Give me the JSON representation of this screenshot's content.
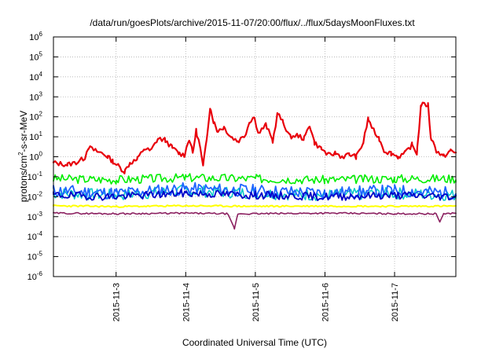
{
  "chart_data": {
    "type": "line",
    "title": "/data/run/goesPlots/archive/2015-11-07/20:00/flux/../flux/5daysMoonFluxes.txt",
    "xlabel": "Coordinated Universal Time (UTC)",
    "ylabel_base": "protons/cm",
    "ylabel_exp": "2",
    "ylabel_rest": "-s-sr-MeV",
    "yscale": "log",
    "ylim": [
      1e-06,
      1000000.0
    ],
    "xlim": [
      2.1,
      7.88
    ],
    "grid": true,
    "y_ticks": [
      {
        "value": -6,
        "base": "10",
        "exp": "-6"
      },
      {
        "value": -5,
        "base": "10",
        "exp": "-5"
      },
      {
        "value": -4,
        "base": "10",
        "exp": "-4"
      },
      {
        "value": -3,
        "base": "10",
        "exp": "-3"
      },
      {
        "value": -2,
        "base": "10",
        "exp": "-2"
      },
      {
        "value": -1,
        "base": "10",
        "exp": "-1"
      },
      {
        "value": 0,
        "base": "10",
        "exp": "0"
      },
      {
        "value": 1,
        "base": "10",
        "exp": "1"
      },
      {
        "value": 2,
        "base": "10",
        "exp": "2"
      },
      {
        "value": 3,
        "base": "10",
        "exp": "3"
      },
      {
        "value": 4,
        "base": "10",
        "exp": "4"
      },
      {
        "value": 5,
        "base": "10",
        "exp": "5"
      },
      {
        "value": 6,
        "base": "10",
        "exp": "6"
      }
    ],
    "x_ticks": [
      {
        "value": 3,
        "label": "2015-11-3"
      },
      {
        "value": 4,
        "label": "2015-11-4"
      },
      {
        "value": 5,
        "label": "2015-11-5"
      },
      {
        "value": 6,
        "label": "2015-11-6"
      },
      {
        "value": 7,
        "label": "2015-11-7"
      }
    ],
    "series": [
      {
        "color": "#e8000b",
        "width": 2.2,
        "jitter": 0.12,
        "points": [
          [
            2.1,
            0.5
          ],
          [
            2.3,
            0.4
          ],
          [
            2.45,
            0.55
          ],
          [
            2.55,
            0.9
          ],
          [
            2.6,
            3.0
          ],
          [
            2.7,
            2.0
          ],
          [
            2.8,
            1.5
          ],
          [
            2.88,
            1.0
          ],
          [
            2.95,
            0.6
          ],
          [
            3.05,
            0.3
          ],
          [
            3.12,
            0.18
          ],
          [
            3.2,
            0.5
          ],
          [
            3.3,
            0.7
          ],
          [
            3.4,
            2.5
          ],
          [
            3.5,
            2.0
          ],
          [
            3.6,
            8.0
          ],
          [
            3.7,
            7.0
          ],
          [
            3.8,
            3.0
          ],
          [
            3.9,
            1.5
          ],
          [
            3.98,
            1.2
          ],
          [
            4.05,
            8.0
          ],
          [
            4.1,
            1.5
          ],
          [
            4.15,
            20
          ],
          [
            4.2,
            4.0
          ],
          [
            4.25,
            0.3
          ],
          [
            4.3,
            8.0
          ],
          [
            4.35,
            300
          ],
          [
            4.4,
            60
          ],
          [
            4.45,
            20
          ],
          [
            4.55,
            30
          ],
          [
            4.65,
            10
          ],
          [
            4.75,
            6.0
          ],
          [
            4.85,
            12
          ],
          [
            4.92,
            60
          ],
          [
            4.98,
            100
          ],
          [
            5.05,
            15
          ],
          [
            5.15,
            40
          ],
          [
            5.25,
            6.0
          ],
          [
            5.32,
            150
          ],
          [
            5.4,
            50
          ],
          [
            5.5,
            10
          ],
          [
            5.6,
            12
          ],
          [
            5.7,
            8.0
          ],
          [
            5.78,
            40
          ],
          [
            5.85,
            5.0
          ],
          [
            5.95,
            2.5
          ],
          [
            6.05,
            1.2
          ],
          [
            6.15,
            1.5
          ],
          [
            6.25,
            1.0
          ],
          [
            6.35,
            1.3
          ],
          [
            6.45,
            1.0
          ],
          [
            6.55,
            5.0
          ],
          [
            6.62,
            80
          ],
          [
            6.7,
            20
          ],
          [
            6.78,
            8.0
          ],
          [
            6.85,
            2.0
          ],
          [
            6.95,
            1.5
          ],
          [
            7.05,
            1.0
          ],
          [
            7.15,
            1.5
          ],
          [
            7.25,
            4.0
          ],
          [
            7.32,
            1.5
          ],
          [
            7.38,
            400
          ],
          [
            7.48,
            400
          ],
          [
            7.52,
            10
          ],
          [
            7.6,
            2.0
          ],
          [
            7.7,
            1.0
          ],
          [
            7.8,
            2.0
          ],
          [
            7.88,
            1.5
          ]
        ]
      },
      {
        "color": "#00ee00",
        "width": 1.6,
        "jitter": 0.22,
        "seed": 3,
        "points": [
          [
            2.1,
            0.08
          ],
          [
            3.0,
            0.07
          ],
          [
            4.0,
            0.09
          ],
          [
            5.0,
            0.08
          ],
          [
            6.0,
            0.07
          ],
          [
            7.0,
            0.08
          ],
          [
            7.88,
            0.08
          ]
        ]
      },
      {
        "color": "#00c8c8",
        "width": 1.5,
        "jitter": 0.3,
        "seed": 7,
        "points": [
          [
            2.1,
            0.015
          ],
          [
            3.0,
            0.012
          ],
          [
            4.0,
            0.02
          ],
          [
            5.0,
            0.015
          ],
          [
            6.0,
            0.012
          ],
          [
            7.0,
            0.015
          ],
          [
            7.88,
            0.012
          ]
        ]
      },
      {
        "color": "#1e64ff",
        "width": 1.8,
        "jitter": 0.32,
        "seed": 11,
        "points": [
          [
            2.1,
            0.02
          ],
          [
            3.0,
            0.015
          ],
          [
            4.0,
            0.025
          ],
          [
            5.0,
            0.02
          ],
          [
            6.0,
            0.015
          ],
          [
            7.0,
            0.02
          ],
          [
            7.88,
            0.015
          ]
        ]
      },
      {
        "color": "#0000c8",
        "width": 1.8,
        "jitter": 0.2,
        "seed": 19,
        "points": [
          [
            2.1,
            0.012
          ],
          [
            3.0,
            0.01
          ],
          [
            4.0,
            0.015
          ],
          [
            5.0,
            0.012
          ],
          [
            6.0,
            0.01
          ],
          [
            7.0,
            0.012
          ],
          [
            7.88,
            0.01
          ]
        ]
      },
      {
        "color": "#ffff00",
        "width": 2.0,
        "jitter": 0.04,
        "seed": 23,
        "points": [
          [
            2.1,
            0.0035
          ],
          [
            3.0,
            0.0032
          ],
          [
            4.0,
            0.0035
          ],
          [
            5.0,
            0.0033
          ],
          [
            6.0,
            0.0034
          ],
          [
            7.0,
            0.0033
          ],
          [
            7.88,
            0.0034
          ]
        ]
      },
      {
        "color": "#8b2060",
        "width": 1.6,
        "jitter": 0.04,
        "seed": 29,
        "points": [
          [
            2.1,
            0.0015
          ],
          [
            3.0,
            0.0014
          ],
          [
            4.0,
            0.0015
          ],
          [
            4.6,
            0.0014
          ],
          [
            4.7,
            0.00025
          ],
          [
            4.75,
            0.0014
          ],
          [
            5.0,
            0.0014
          ],
          [
            6.0,
            0.0015
          ],
          [
            7.0,
            0.0014
          ],
          [
            7.6,
            0.0014
          ],
          [
            7.65,
            0.0005
          ],
          [
            7.7,
            0.0014
          ],
          [
            7.88,
            0.0015
          ]
        ]
      }
    ]
  }
}
